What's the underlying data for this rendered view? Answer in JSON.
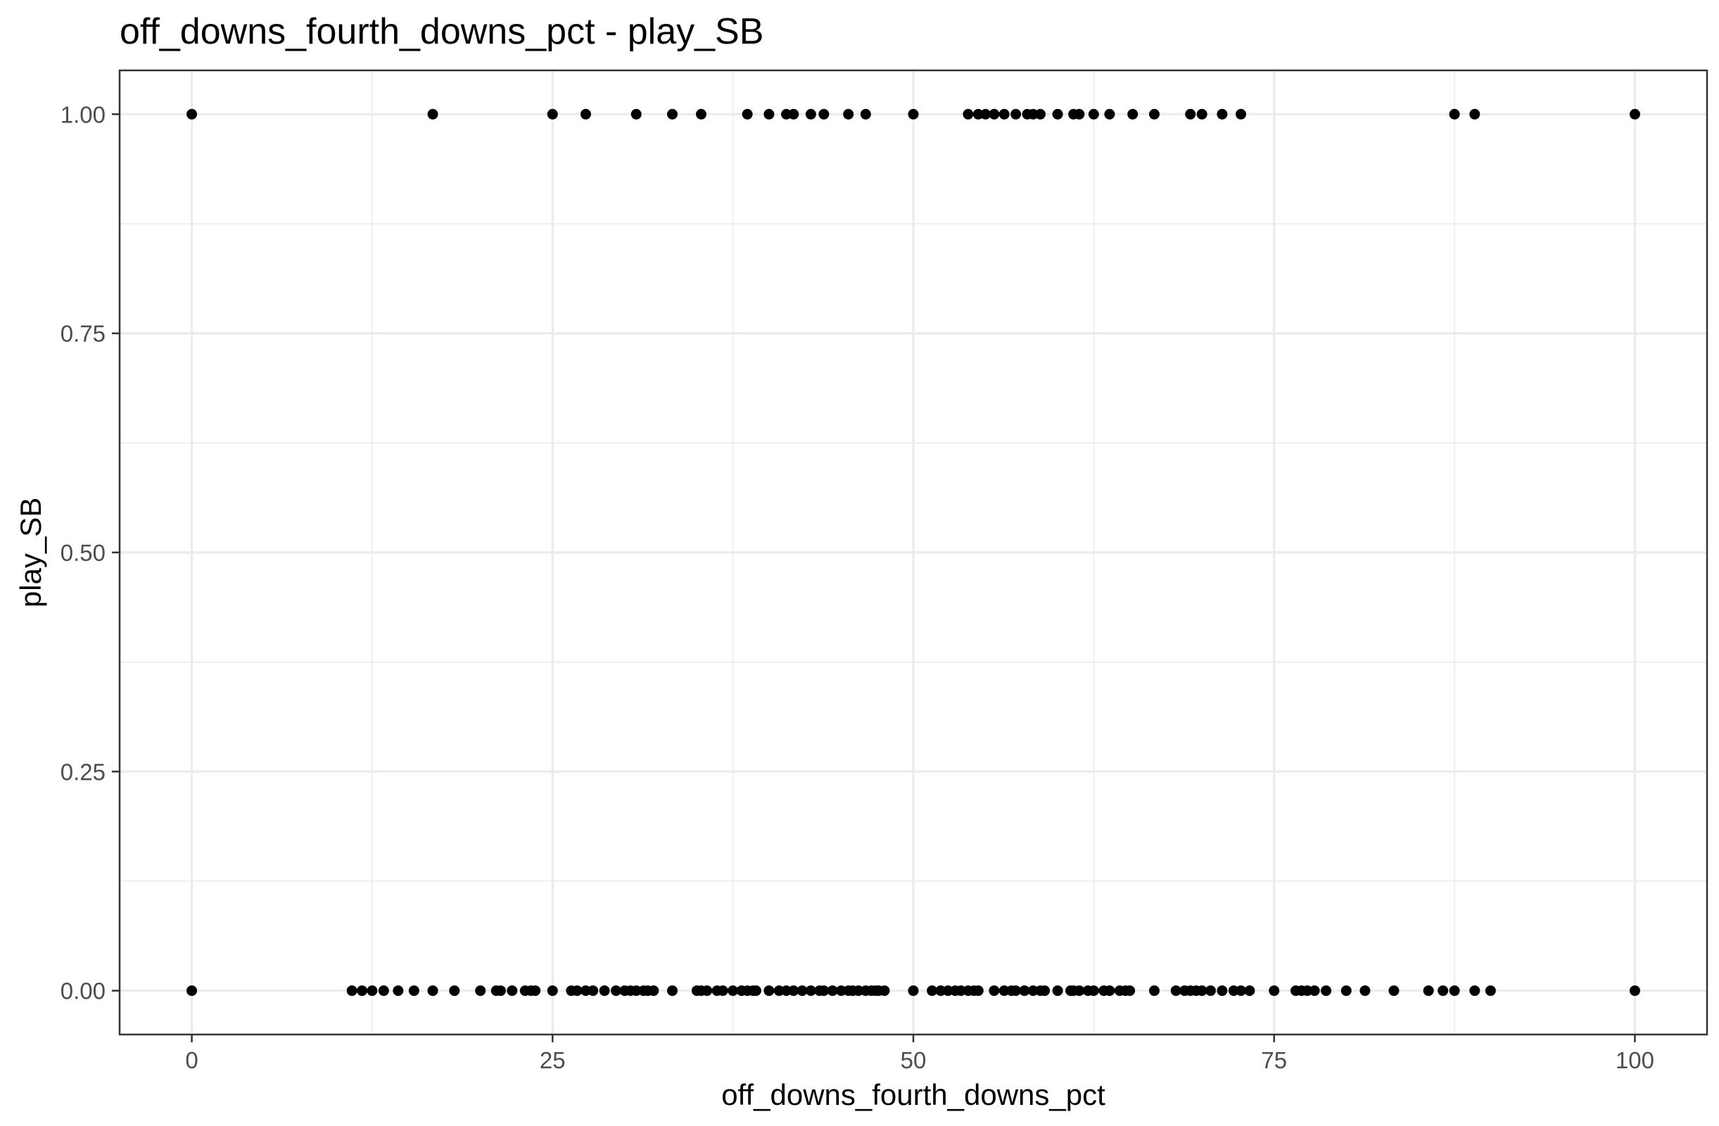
{
  "chart_data": {
    "type": "scatter",
    "title": "off_downs_fourth_downs_pct - play_SB",
    "xlabel": "off_downs_fourth_downs_pct",
    "ylabel": "play_SB",
    "xlim": [
      -5,
      105
    ],
    "ylim": [
      -0.05,
      1.05
    ],
    "x_ticks": [
      0,
      25,
      50,
      75,
      100
    ],
    "x_tick_labels": [
      "0",
      "25",
      "50",
      "75",
      "100"
    ],
    "y_ticks": [
      0,
      0.25,
      0.5,
      0.75,
      1
    ],
    "y_tick_labels": [
      "0.00",
      "0.25",
      "0.50",
      "0.75",
      "1.00"
    ],
    "grid": true,
    "point_color": "#000000",
    "series": [
      {
        "values_y": 1,
        "x": [
          0,
          16.7,
          25,
          27.3,
          30.8,
          33.3,
          35.3,
          38.5,
          40,
          41.2,
          41.7,
          42.9,
          43.8,
          45.5,
          46.7,
          50,
          53.8,
          54.5,
          55,
          55.6,
          56.3,
          57.1,
          57.9,
          58.3,
          58.8,
          60,
          61.1,
          61.5,
          62.5,
          63.6,
          65.2,
          66.7,
          69.2,
          70,
          71.4,
          72.7,
          87.5,
          88.9,
          100
        ]
      },
      {
        "values_y": 0,
        "x": [
          0,
          11.1,
          11.8,
          12.5,
          13.3,
          14.3,
          15.4,
          16.7,
          18.2,
          20,
          21.1,
          21.4,
          22.2,
          23.1,
          23.5,
          23.8,
          25,
          26.3,
          26.7,
          27.3,
          27.8,
          28.6,
          29.4,
          30,
          30.4,
          30.8,
          31.3,
          31.6,
          32,
          33.3,
          35,
          35.3,
          35.7,
          36.4,
          36.8,
          37.5,
          38.1,
          38.5,
          38.9,
          39.1,
          40,
          40.7,
          41.2,
          41.7,
          42.3,
          42.9,
          43.5,
          43.8,
          44.4,
          45,
          45.5,
          45.8,
          46.2,
          46.7,
          47.1,
          47.4,
          47.6,
          48,
          50,
          51.3,
          51.9,
          52.4,
          52.9,
          53.3,
          53.8,
          54.2,
          54.5,
          55.6,
          56.3,
          56.8,
          57.1,
          57.7,
          58.3,
          58.8,
          59.1,
          60,
          60.9,
          61.1,
          61.5,
          62.1,
          62.5,
          63.2,
          63.6,
          64.3,
          64.7,
          65,
          66.7,
          68.2,
          68.8,
          69.2,
          69.6,
          70,
          70.6,
          71.4,
          72.2,
          72.7,
          73.3,
          75,
          76.5,
          76.9,
          77.3,
          77.8,
          78.6,
          80,
          81.3,
          83.3,
          85.7,
          86.7,
          87.5,
          88.9,
          90,
          100
        ]
      }
    ]
  }
}
